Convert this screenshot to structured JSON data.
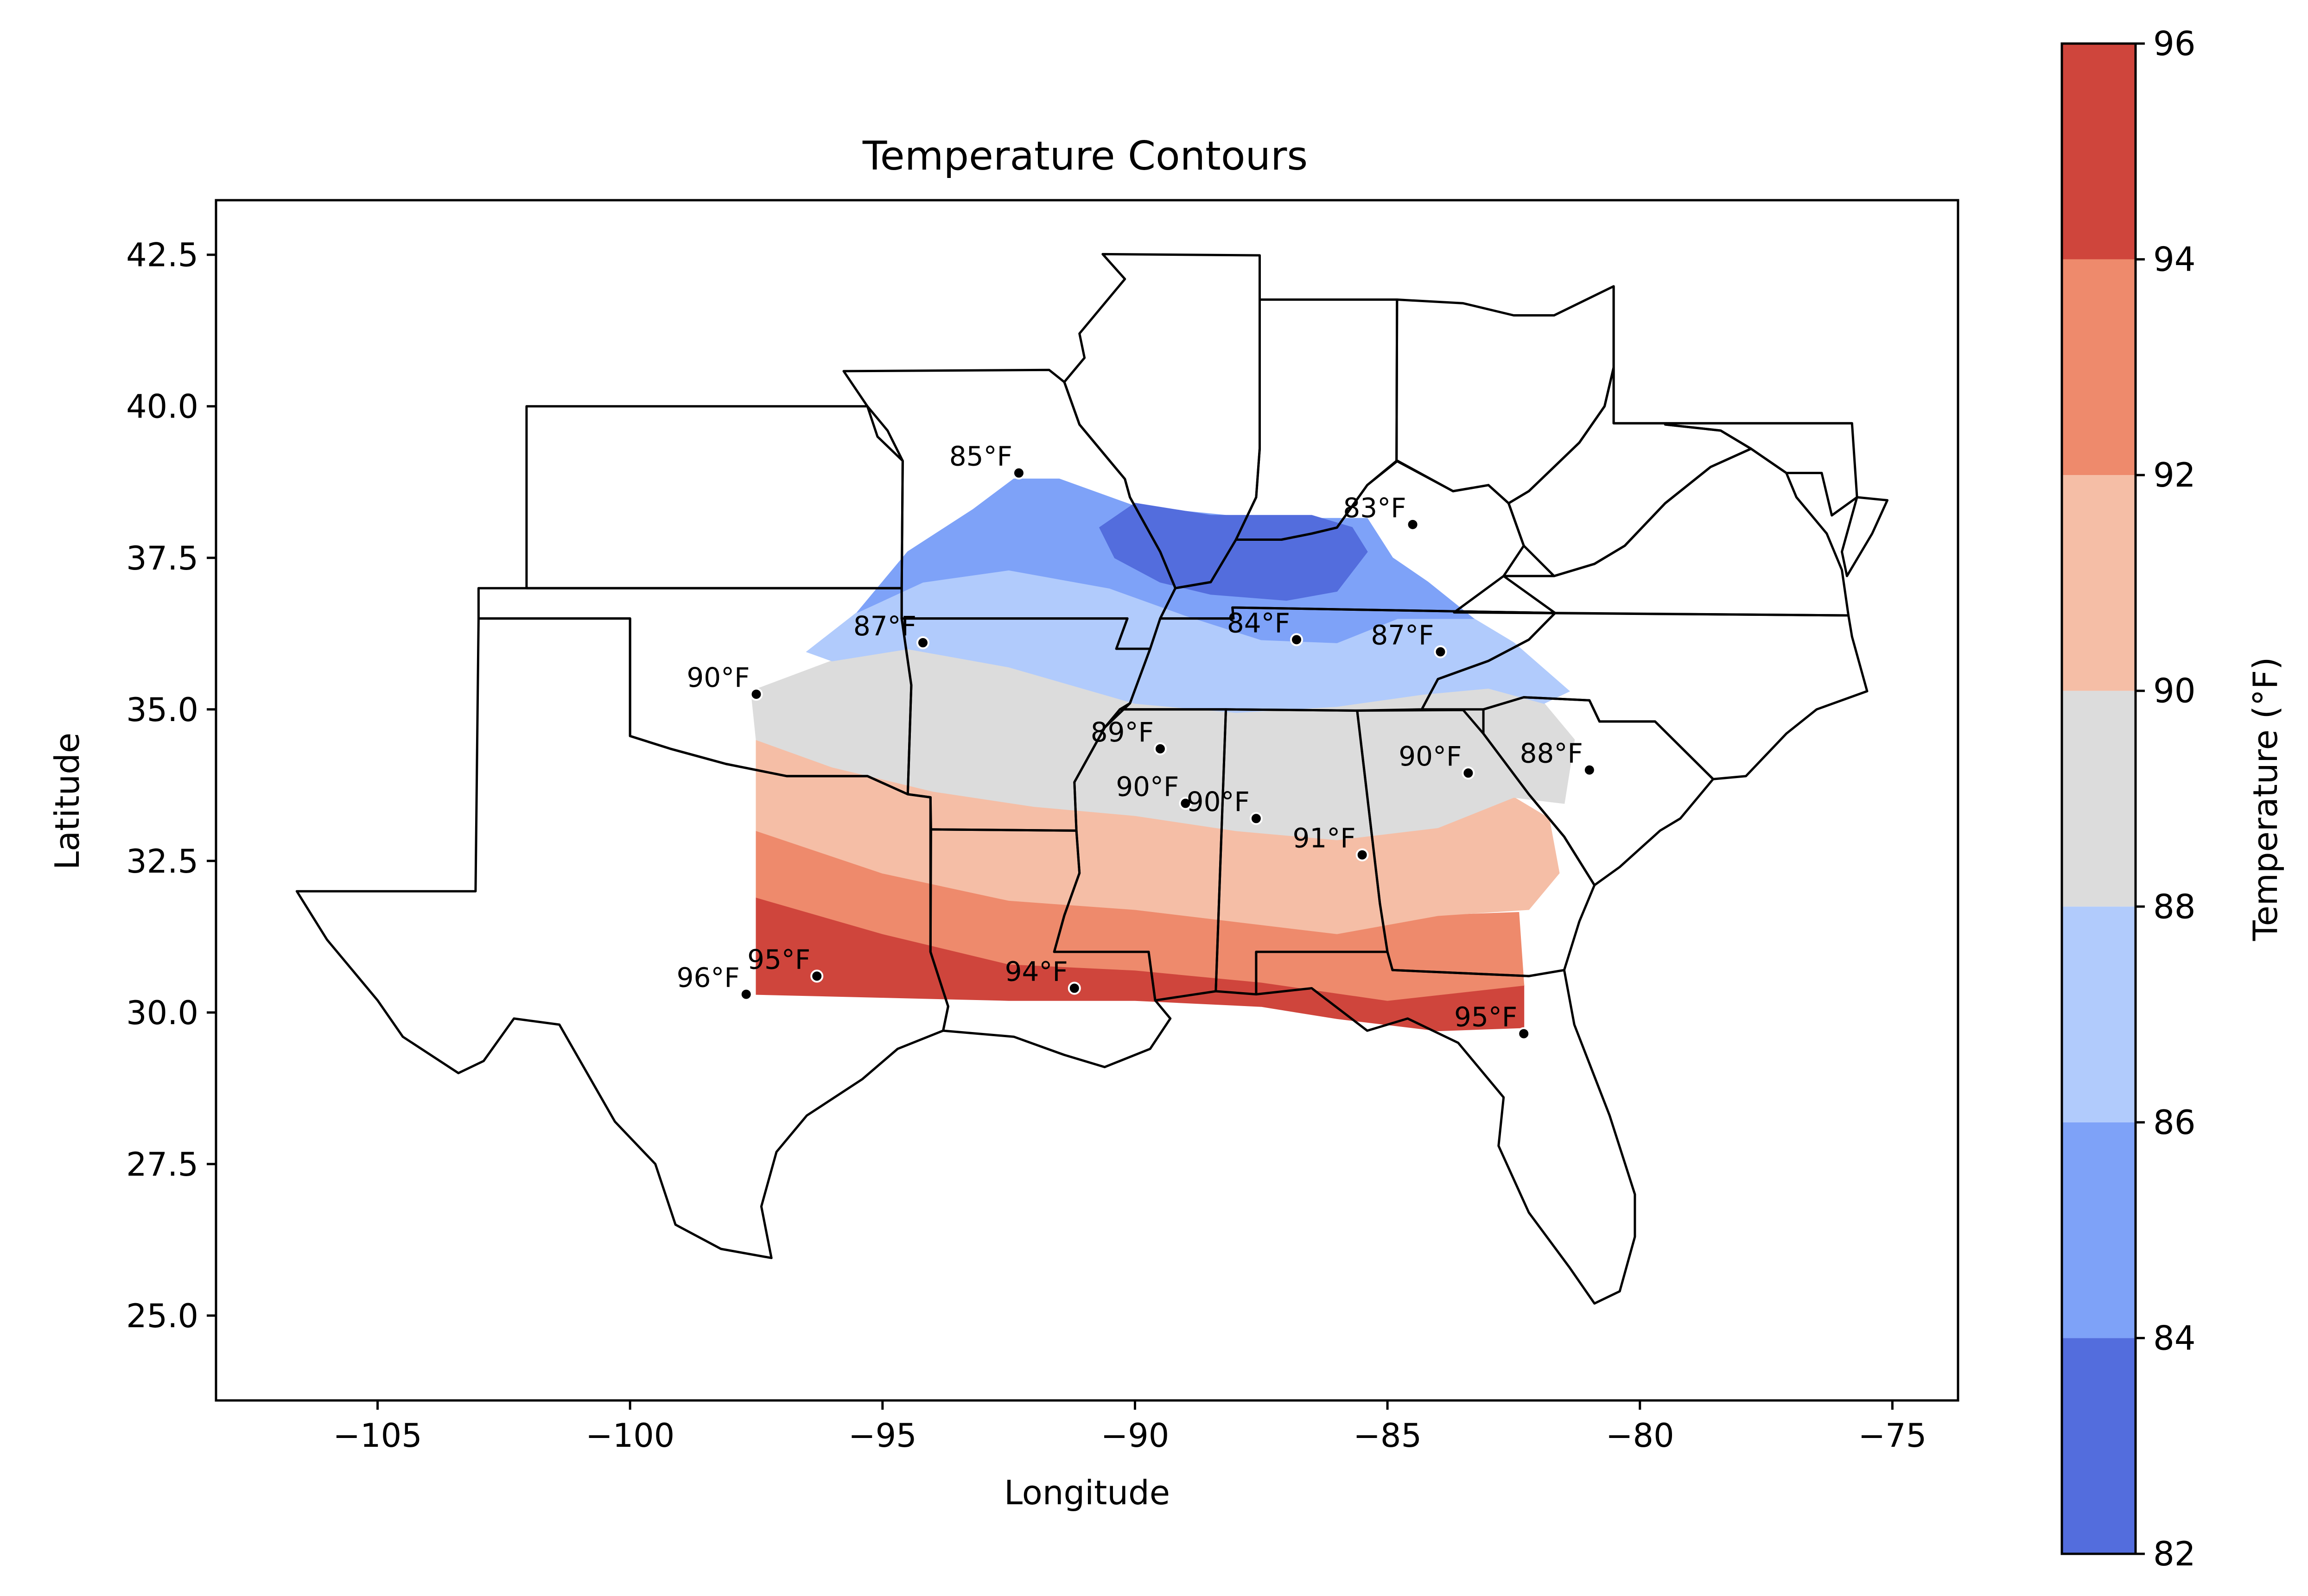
{
  "chart_data": {
    "type": "heatmap",
    "subtype": "filled-contour-map",
    "title": "Temperature Contours",
    "xlabel": "Longitude",
    "ylabel": "Latitude",
    "xlim": [
      -108.2,
      -73.7
    ],
    "ylim": [
      23.6,
      43.4
    ],
    "xticks": [
      -105,
      -100,
      -95,
      -90,
      -85,
      -80,
      -75
    ],
    "xtick_labels": [
      "−105",
      "−100",
      "−95",
      "−90",
      "−85",
      "−80",
      "−75"
    ],
    "yticks": [
      25.0,
      27.5,
      30.0,
      32.5,
      35.0,
      37.5,
      40.0,
      42.5
    ],
    "ytick_labels": [
      "25.0",
      "27.5",
      "30.0",
      "32.5",
      "35.0",
      "37.5",
      "40.0",
      "42.5"
    ],
    "grid": false,
    "colorbar": {
      "label": "Temperature (°F)",
      "levels": [
        82,
        84,
        86,
        88,
        90,
        92,
        94,
        96
      ],
      "tick_labels": [
        "82",
        "84",
        "86",
        "88",
        "90",
        "92",
        "94",
        "96"
      ],
      "colors": [
        "#536ddd",
        "#7ea2f8",
        "#b1cbfc",
        "#dcdcdc",
        "#f5bea6",
        "#ee8a6c",
        "#cf453c"
      ]
    },
    "stations": [
      {
        "lon": -92.3,
        "lat": 38.9,
        "label": "85°F",
        "value": 85
      },
      {
        "lon": -84.5,
        "lat": 38.05,
        "label": "83°F",
        "value": 83
      },
      {
        "lon": -94.2,
        "lat": 36.1,
        "label": "87°F",
        "value": 87
      },
      {
        "lon": -86.8,
        "lat": 36.15,
        "label": "84°F",
        "value": 84
      },
      {
        "lon": -83.95,
        "lat": 35.95,
        "label": "87°F",
        "value": 87
      },
      {
        "lon": -97.5,
        "lat": 35.25,
        "label": "90°F",
        "value": 90
      },
      {
        "lon": -89.5,
        "lat": 34.35,
        "label": "89°F",
        "value": 89
      },
      {
        "lon": -83.4,
        "lat": 33.95,
        "label": "90°F",
        "value": 90
      },
      {
        "lon": -81.0,
        "lat": 34.0,
        "label": "88°F",
        "value": 88
      },
      {
        "lon": -89.0,
        "lat": 33.45,
        "label": "90°F",
        "value": 90
      },
      {
        "lon": -87.6,
        "lat": 33.2,
        "label": "90°F",
        "value": 90
      },
      {
        "lon": -85.5,
        "lat": 32.6,
        "label": "91°F",
        "value": 91
      },
      {
        "lon": -96.3,
        "lat": 30.6,
        "label": "95°F",
        "value": 95
      },
      {
        "lon": -97.7,
        "lat": 30.3,
        "label": "96°F",
        "value": 96
      },
      {
        "lon": -91.2,
        "lat": 30.4,
        "label": "94°F",
        "value": 94
      },
      {
        "lon": -82.3,
        "lat": 29.65,
        "label": "95°F",
        "value": 95
      }
    ]
  }
}
